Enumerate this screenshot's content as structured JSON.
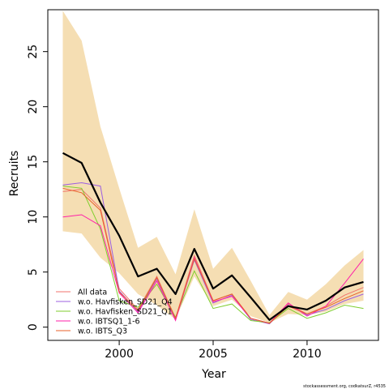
{
  "chart_data": {
    "type": "line",
    "xlabel": "Year",
    "ylabel": "Recruits",
    "xlim": [
      1996.2,
      2013.8
    ],
    "ylim": [
      -1.2,
      28.8
    ],
    "x_ticks": [
      2000,
      2005,
      2010
    ],
    "y_ticks": [
      0,
      5,
      10,
      15,
      20,
      25
    ],
    "grid": false,
    "legend_position": "bottom-left",
    "x": [
      1997,
      1998,
      1999,
      2000,
      2001,
      2002,
      2003,
      2004,
      2005,
      2006,
      2007,
      2008,
      2009,
      2010,
      2011,
      2012,
      2013
    ],
    "band": {
      "lower": [
        8.7,
        8.5,
        6.3,
        4.9,
        3.0,
        2.0,
        0.7,
        4.6,
        1.9,
        2.5,
        1.0,
        0.4,
        1.2,
        1.1,
        1.4,
        2.1,
        2.4
      ],
      "upper": [
        28.7,
        26.0,
        18.2,
        12.6,
        7.2,
        8.2,
        4.8,
        10.7,
        5.3,
        7.2,
        4.2,
        1.1,
        3.2,
        2.5,
        3.9,
        5.6,
        7.0
      ],
      "color": "#f5deb3"
    },
    "main_series": {
      "values": [
        15.8,
        14.9,
        11.3,
        8.3,
        4.6,
        5.3,
        3.0,
        7.1,
        3.5,
        4.7,
        2.7,
        0.65,
        1.9,
        1.6,
        2.4,
        3.6,
        4.1
      ],
      "color": "#000000"
    },
    "series": [
      {
        "name": "All data",
        "color": "#f0736d",
        "values": [
          12.3,
          12.5,
          10.8,
          3.5,
          1.6,
          4.6,
          0.8,
          6.5,
          2.4,
          3.0,
          0.8,
          0.35,
          2.1,
          1.2,
          1.9,
          2.9,
          3.6
        ]
      },
      {
        "name": "w.o. Havfisken_SD21_Q4",
        "color": "#9c5fe0",
        "values": [
          12.9,
          13.1,
          12.8,
          3.3,
          1.4,
          4.4,
          0.7,
          6.1,
          2.2,
          2.9,
          0.7,
          0.3,
          2.0,
          1.1,
          1.6,
          2.4,
          3.0
        ]
      },
      {
        "name": "w.o. Havfisken_SD21_Q1",
        "color": "#7fce2e",
        "values": [
          12.8,
          12.6,
          8.9,
          2.4,
          1.8,
          3.9,
          0.9,
          5.1,
          1.7,
          2.1,
          0.6,
          0.4,
          1.7,
          0.8,
          1.3,
          2.0,
          1.7
        ]
      },
      {
        "name": "w.o. IBTSQ1_1-6",
        "color": "#ff1fa9",
        "values": [
          10.0,
          10.2,
          9.2,
          3.1,
          1.3,
          4.2,
          0.6,
          6.3,
          2.3,
          2.8,
          0.8,
          0.35,
          2.2,
          1.0,
          1.9,
          4.0,
          6.2
        ]
      },
      {
        "name": "w.o. IBTS_Q3",
        "color": "#e8602a",
        "values": [
          12.6,
          12.2,
          10.6,
          3.2,
          1.5,
          4.5,
          0.8,
          6.2,
          2.4,
          3.0,
          0.8,
          0.35,
          1.9,
          1.2,
          1.8,
          2.6,
          3.3
        ]
      }
    ],
    "footer": "stockassessment.org, codkatsurZ, r4535"
  }
}
